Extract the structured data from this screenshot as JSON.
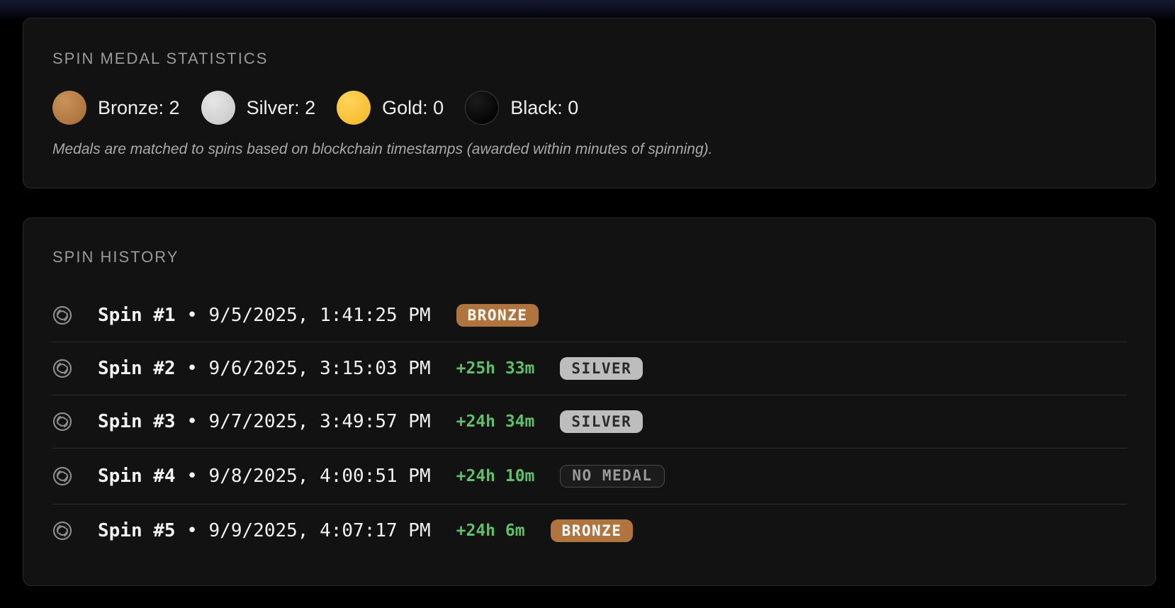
{
  "stats": {
    "title": "SPIN MEDAL STATISTICS",
    "medals": [
      {
        "label": "Bronze: 2",
        "color": "#b0763f"
      },
      {
        "label": "Silver: 2",
        "color": "#cfcfcf"
      },
      {
        "label": "Gold: 0",
        "color": "#f7bf33"
      },
      {
        "label": "Black: 0",
        "color": "#050505"
      }
    ],
    "note": "Medals are matched to spins based on blockchain timestamps (awarded within minutes of spinning)."
  },
  "history": {
    "title": "SPIN HISTORY",
    "separator": "•",
    "rows": [
      {
        "name": "Spin #1",
        "datetime": "9/5/2025, 1:41:25 PM",
        "delta": "",
        "badge": "BRONZE",
        "badge_type": "bronze"
      },
      {
        "name": "Spin #2",
        "datetime": "9/6/2025, 3:15:03 PM",
        "delta": "+25h 33m",
        "badge": "SILVER",
        "badge_type": "silver"
      },
      {
        "name": "Spin #3",
        "datetime": "9/7/2025, 3:49:57 PM",
        "delta": "+24h 34m",
        "badge": "SILVER",
        "badge_type": "silver"
      },
      {
        "name": "Spin #4",
        "datetime": "9/8/2025, 4:00:51 PM",
        "delta": "+24h 10m",
        "badge": "NO MEDAL",
        "badge_type": "none"
      },
      {
        "name": "Spin #5",
        "datetime": "9/9/2025, 4:07:17 PM",
        "delta": "+24h 6m",
        "badge": "BRONZE",
        "badge_type": "bronze"
      }
    ]
  },
  "colors": {
    "background": "#000000",
    "card": "#121212",
    "delta_green": "#5fbf6b",
    "bronze_badge": "#b0743e",
    "silver_badge": "#bdbdbd"
  },
  "icons": {
    "spin_row_icon": "spiral-swirl-icon"
  }
}
